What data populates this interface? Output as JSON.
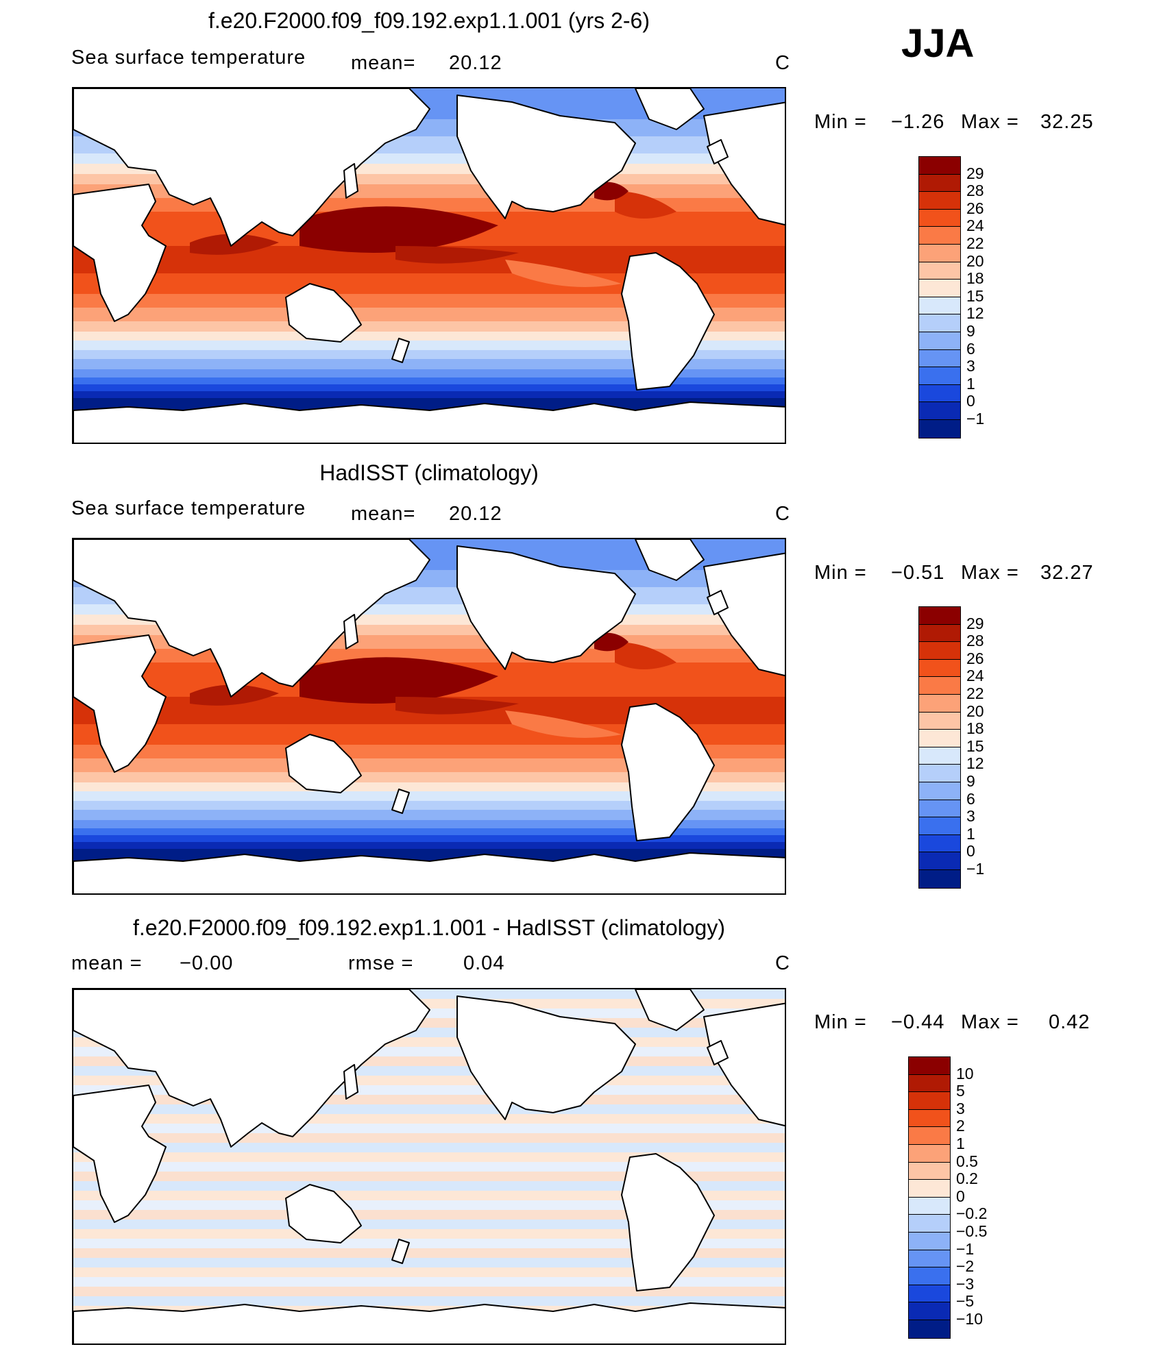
{
  "season": "JJA",
  "panel1": {
    "title": "f.e20.F2000.f09_f09.192.exp1.1.001 (yrs 2-6)",
    "field": "Sea surface temperature",
    "mean_label": "mean=",
    "mean_value": "20.12",
    "units": "C",
    "min_label": "Min =",
    "min_value": "−1.26",
    "max_label": "Max =",
    "max_value": "32.25",
    "levels": [
      "29",
      "28",
      "26",
      "24",
      "22",
      "20",
      "18",
      "15",
      "12",
      "9",
      "6",
      "3",
      "1",
      "0",
      "−1"
    ]
  },
  "panel2": {
    "title": "HadISST (climatology)",
    "field": "Sea surface temperature",
    "mean_label": "mean=",
    "mean_value": "20.12",
    "units": "C",
    "min_label": "Min =",
    "min_value": "−0.51",
    "max_label": "Max =",
    "max_value": "32.27",
    "levels": [
      "29",
      "28",
      "26",
      "24",
      "22",
      "20",
      "18",
      "15",
      "12",
      "9",
      "6",
      "3",
      "1",
      "0",
      "−1"
    ]
  },
  "panel3": {
    "title": "f.e20.F2000.f09_f09.192.exp1.1.001 - HadISST (climatology)",
    "mean_label": "mean =",
    "mean_value": "−0.00",
    "rmse_label": "rmse =",
    "rmse_value": "0.04",
    "units": "C",
    "min_label": "Min =",
    "min_value": "−0.44",
    "max_label": "Max =",
    "max_value": "0.42",
    "levels": [
      "10",
      "5",
      "3",
      "2",
      "1",
      "0.5",
      "0.2",
      "0",
      "−0.2",
      "−0.5",
      "−1",
      "−2",
      "−3",
      "−5",
      "−10"
    ]
  },
  "colors": {
    "scale": [
      "#8b0000",
      "#b01a04",
      "#d63209",
      "#f1521b",
      "#fa7a46",
      "#fca278",
      "#fdc5a6",
      "#fde7d6",
      "#d8e8fb",
      "#b5cffa",
      "#8db2f7",
      "#6694f4",
      "#3a70ee",
      "#1a48dd",
      "#0a2ab4",
      "#001d87"
    ],
    "land": "#ffffff",
    "coast": "#000000"
  }
}
